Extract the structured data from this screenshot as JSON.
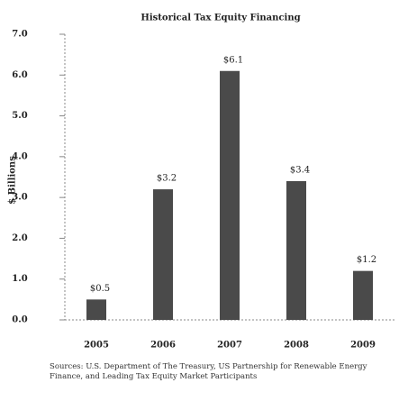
{
  "chart_data": {
    "type": "bar",
    "title": "Historical Tax Equity Financing",
    "y_label": "$ Billions",
    "categories": [
      "2005",
      "2006",
      "2007",
      "2008",
      "2009"
    ],
    "values": [
      0.5,
      3.2,
      6.1,
      3.4,
      1.2
    ],
    "value_labels": [
      "$0.5",
      "$3.2",
      "$6.1",
      "$3.4",
      "$1.2"
    ],
    "color": "#4a4a4a",
    "ylim": [
      0,
      7
    ],
    "yticks": [
      {
        "value": 0,
        "label": "0.0"
      },
      {
        "value": 1,
        "label": "1.0"
      },
      {
        "value": 2,
        "label": "2.0"
      },
      {
        "value": 3,
        "label": "3.0"
      },
      {
        "value": 4,
        "label": "4.0"
      },
      {
        "value": 5,
        "label": "5.0"
      },
      {
        "value": 6,
        "label": "6.0"
      },
      {
        "value": 7,
        "label": "7.0"
      }
    ],
    "grid": false,
    "source": "Sources: U.S. Department of The Treasury, US Partnership for Renewable Energy Finance, and Leading Tax Equity Market Participants"
  }
}
